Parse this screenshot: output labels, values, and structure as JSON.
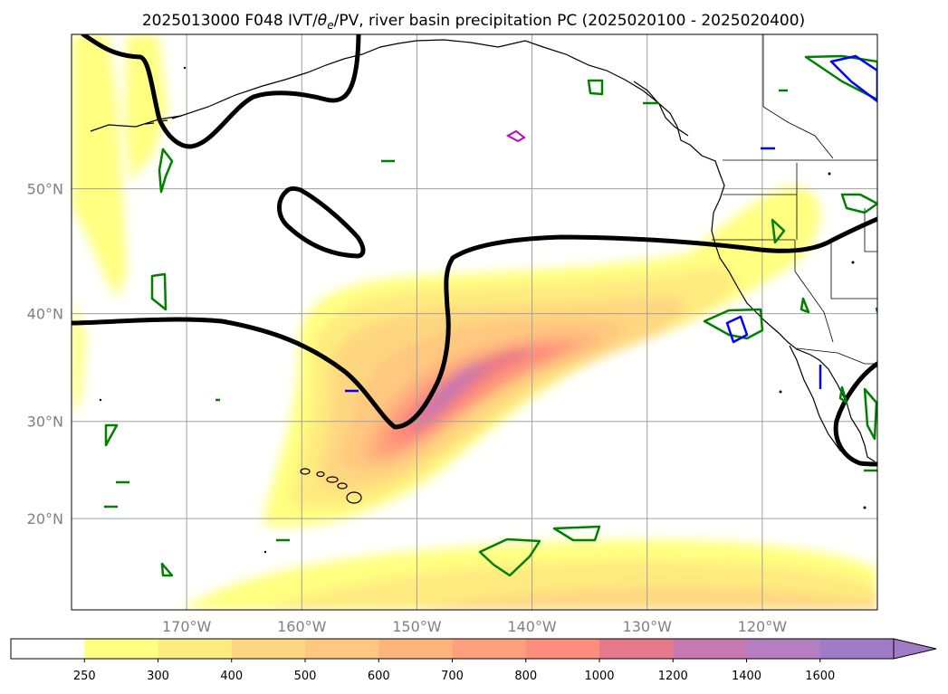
{
  "title": "2025013000 F048 IVT/θe/PV, river basin precipitation PC (2025020100 - 2025020400)",
  "title_parts": {
    "pre": "2025013000 F048 IVT/",
    "theta": "θ",
    "sub": "e",
    "post": "/PV, river basin precipitation PC (2025020100 - 2025020400)"
  },
  "map": {
    "lon_range": [
      -180,
      -110
    ],
    "lat_range": [
      10,
      60
    ],
    "lon_ticks": [
      {
        "lon": -170,
        "label": "170°W"
      },
      {
        "lon": -160,
        "label": "160°W"
      },
      {
        "lon": -150,
        "label": "150°W"
      },
      {
        "lon": -140,
        "label": "140°W"
      },
      {
        "lon": -130,
        "label": "130°W"
      },
      {
        "lon": -120,
        "label": "120°W"
      }
    ],
    "lat_ticks": [
      {
        "lat": 50,
        "label": "50°N"
      },
      {
        "lat": 40,
        "label": "40°N"
      },
      {
        "lat": 30,
        "label": "30°N"
      },
      {
        "lat": 20,
        "label": "20°N"
      }
    ],
    "grid": true,
    "coast_color": "#000000",
    "contour_color": "#000000"
  },
  "colorbar": {
    "levels": [
      "250",
      "300",
      "400",
      "500",
      "600",
      "700",
      "800",
      "1000",
      "1200",
      "1400",
      "1600"
    ],
    "colors": [
      "#ffffff",
      "#ffff80",
      "#ffeb80",
      "#ffd780",
      "#ffc880",
      "#ffb47c",
      "#ffa07c",
      "#ff8c7c",
      "#e67a8a",
      "#c878b0",
      "#b47ec0",
      "#a07cc8"
    ],
    "extend": "max"
  },
  "contour_colors": {
    "pc_green": "#008000",
    "pc_blue": "#0000ff",
    "pc_magenta": "#c000c0"
  }
}
